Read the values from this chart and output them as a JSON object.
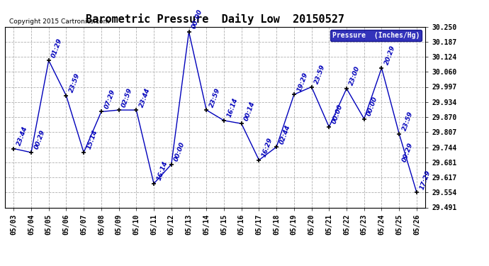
{
  "title": "Barometric Pressure  Daily Low  20150527",
  "copyright": "Copyright 2015 Cartronics.com",
  "legend_label": "Pressure  (Inches/Hg)",
  "dates": [
    "05/03",
    "05/04",
    "05/05",
    "05/06",
    "05/07",
    "05/08",
    "05/09",
    "05/10",
    "05/11",
    "05/12",
    "05/13",
    "05/14",
    "05/15",
    "05/16",
    "05/17",
    "05/18",
    "05/19",
    "05/20",
    "05/21",
    "05/22",
    "05/23",
    "05/24",
    "05/25",
    "05/26"
  ],
  "values": [
    29.738,
    29.722,
    30.108,
    29.96,
    29.722,
    29.893,
    29.9,
    29.9,
    29.591,
    29.672,
    30.228,
    29.9,
    29.856,
    29.843,
    29.69,
    29.745,
    29.965,
    29.997,
    29.829,
    29.99,
    29.863,
    30.076,
    29.8,
    29.554
  ],
  "time_labels": [
    "23:44",
    "00:29",
    "01:29",
    "23:59",
    "15:14",
    "07:29",
    "02:59",
    "23:44",
    "16:14",
    "00:00",
    "00:00",
    "23:59",
    "16:14",
    "00:14",
    "16:29",
    "02:44",
    "19:29",
    "23:59",
    "00:00",
    "23:00",
    "00:00",
    "20:29",
    "23:59",
    "17:29"
  ],
  "extra_label_index": 22,
  "extra_label": "09:29",
  "ylim": [
    29.491,
    30.25
  ],
  "yticks": [
    29.491,
    29.554,
    29.617,
    29.681,
    29.744,
    29.807,
    29.87,
    29.934,
    29.997,
    30.06,
    30.124,
    30.187,
    30.25
  ],
  "line_color": "#0000bb",
  "grid_color": "#b0b0b0",
  "bg_color": "#ffffff",
  "title_fontsize": 11,
  "tick_fontsize": 7,
  "annot_fontsize": 6.5,
  "legend_bg": "#0000aa",
  "legend_fg": "#ffffff"
}
